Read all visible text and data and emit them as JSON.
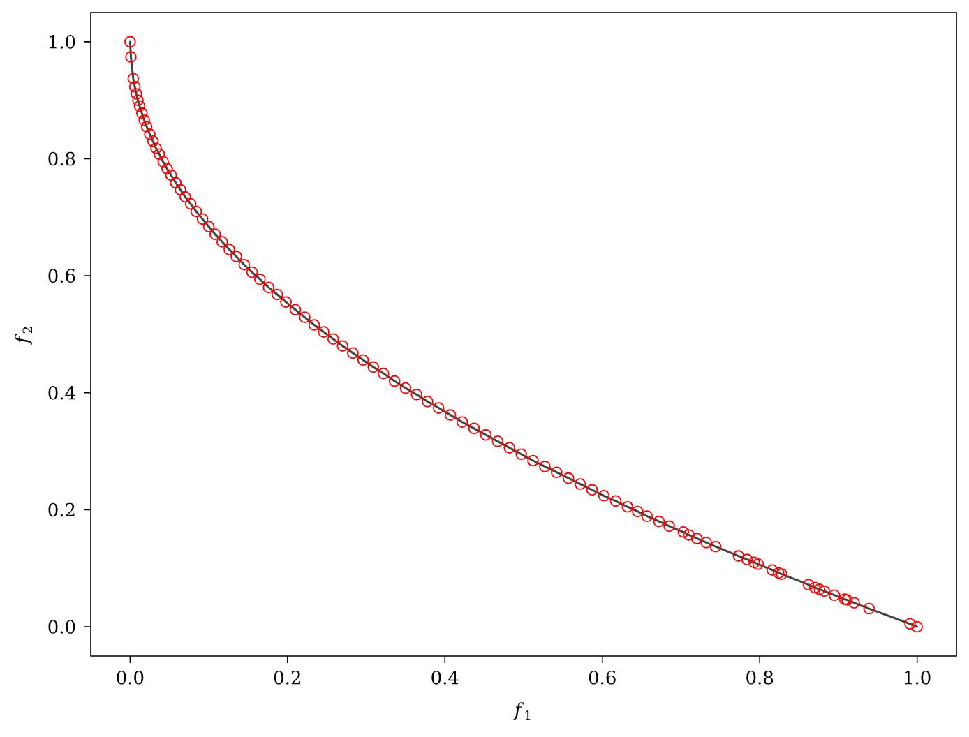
{
  "chart_data": {
    "type": "scatter",
    "xlabel": "*f*$_{1}$",
    "ylabel": "*f*$_{2}$",
    "x": [
      0.0,
      0.001,
      0.004,
      0.006,
      0.008,
      0.01,
      0.012,
      0.015,
      0.018,
      0.021,
      0.025,
      0.029,
      0.033,
      0.037,
      0.042,
      0.047,
      0.052,
      0.058,
      0.064,
      0.07,
      0.077,
      0.084,
      0.092,
      0.1,
      0.108,
      0.117,
      0.126,
      0.135,
      0.145,
      0.155,
      0.165,
      0.176,
      0.187,
      0.198,
      0.21,
      0.222,
      0.234,
      0.246,
      0.258,
      0.27,
      0.283,
      0.296,
      0.309,
      0.322,
      0.336,
      0.35,
      0.364,
      0.378,
      0.392,
      0.407,
      0.422,
      0.437,
      0.452,
      0.467,
      0.482,
      0.497,
      0.512,
      0.527,
      0.542,
      0.557,
      0.572,
      0.587,
      0.602,
      0.617,
      0.632,
      0.645,
      0.657,
      0.672,
      0.685,
      0.703,
      0.71,
      0.72,
      0.732,
      0.744,
      0.773,
      0.784,
      0.793,
      0.798,
      0.816,
      0.824,
      0.828,
      0.862,
      0.87,
      0.876,
      0.882,
      0.895,
      0.908,
      0.911,
      0.92,
      0.939,
      0.991,
      1.0
    ],
    "series": [
      {
        "color": "#ff0000",
        "marker": "circle",
        "values": [
          1.0,
          0.974,
          0.937,
          0.923,
          0.911,
          0.9,
          0.89,
          0.878,
          0.866,
          0.855,
          0.842,
          0.83,
          0.818,
          0.808,
          0.795,
          0.783,
          0.772,
          0.759,
          0.747,
          0.735,
          0.723,
          0.71,
          0.697,
          0.684,
          0.671,
          0.658,
          0.645,
          0.633,
          0.619,
          0.606,
          0.594,
          0.58,
          0.568,
          0.555,
          0.542,
          0.529,
          0.516,
          0.504,
          0.492,
          0.48,
          0.468,
          0.456,
          0.444,
          0.433,
          0.42,
          0.408,
          0.397,
          0.385,
          0.374,
          0.362,
          0.35,
          0.339,
          0.328,
          0.317,
          0.306,
          0.295,
          0.284,
          0.274,
          0.264,
          0.254,
          0.244,
          0.234,
          0.224,
          0.215,
          0.205,
          0.197,
          0.189,
          0.18,
          0.172,
          0.162,
          0.157,
          0.151,
          0.144,
          0.137,
          0.121,
          0.115,
          0.11,
          0.107,
          0.097,
          0.092,
          0.09,
          0.072,
          0.067,
          0.064,
          0.061,
          0.054,
          0.047,
          0.046,
          0.041,
          0.031,
          0.005,
          0.0
        ]
      },
      {
        "type": "line",
        "color": "#444444",
        "marker": "none",
        "line_style": "solid",
        "values": [
          1.0,
          0.974,
          0.937,
          0.923,
          0.911,
          0.9,
          0.89,
          0.878,
          0.866,
          0.855,
          0.842,
          0.83,
          0.818,
          0.808,
          0.795,
          0.783,
          0.772,
          0.759,
          0.747,
          0.735,
          0.723,
          0.71,
          0.697,
          0.684,
          0.671,
          0.658,
          0.645,
          0.633,
          0.619,
          0.606,
          0.594,
          0.58,
          0.568,
          0.555,
          0.542,
          0.529,
          0.516,
          0.504,
          0.492,
          0.48,
          0.468,
          0.456,
          0.444,
          0.433,
          0.42,
          0.408,
          0.397,
          0.385,
          0.374,
          0.362,
          0.35,
          0.339,
          0.328,
          0.317,
          0.306,
          0.295,
          0.284,
          0.274,
          0.264,
          0.254,
          0.244,
          0.234,
          0.224,
          0.215,
          0.205,
          0.197,
          0.189,
          0.18,
          0.172,
          0.162,
          0.157,
          0.151,
          0.144,
          0.137,
          0.121,
          0.115,
          0.11,
          0.107,
          0.097,
          0.092,
          0.09,
          0.072,
          0.067,
          0.064,
          0.061,
          0.054,
          0.047,
          0.046,
          0.041,
          0.031,
          0.005,
          0.0
        ]
      }
    ],
    "xlim": [
      -0.05,
      1.05
    ],
    "ylim": [
      -0.05,
      1.05
    ],
    "xticks": [
      {
        "value": 0,
        "label": "0.0"
      },
      0.2,
      0.4,
      0.6,
      0.8,
      {
        "value": 1,
        "label": "1.0"
      }
    ],
    "yticks": [
      {
        "value": 0,
        "label": "0.0"
      },
      0.2,
      0.4,
      0.6,
      0.8,
      {
        "value": 1,
        "label": "1.0"
      }
    ]
  }
}
